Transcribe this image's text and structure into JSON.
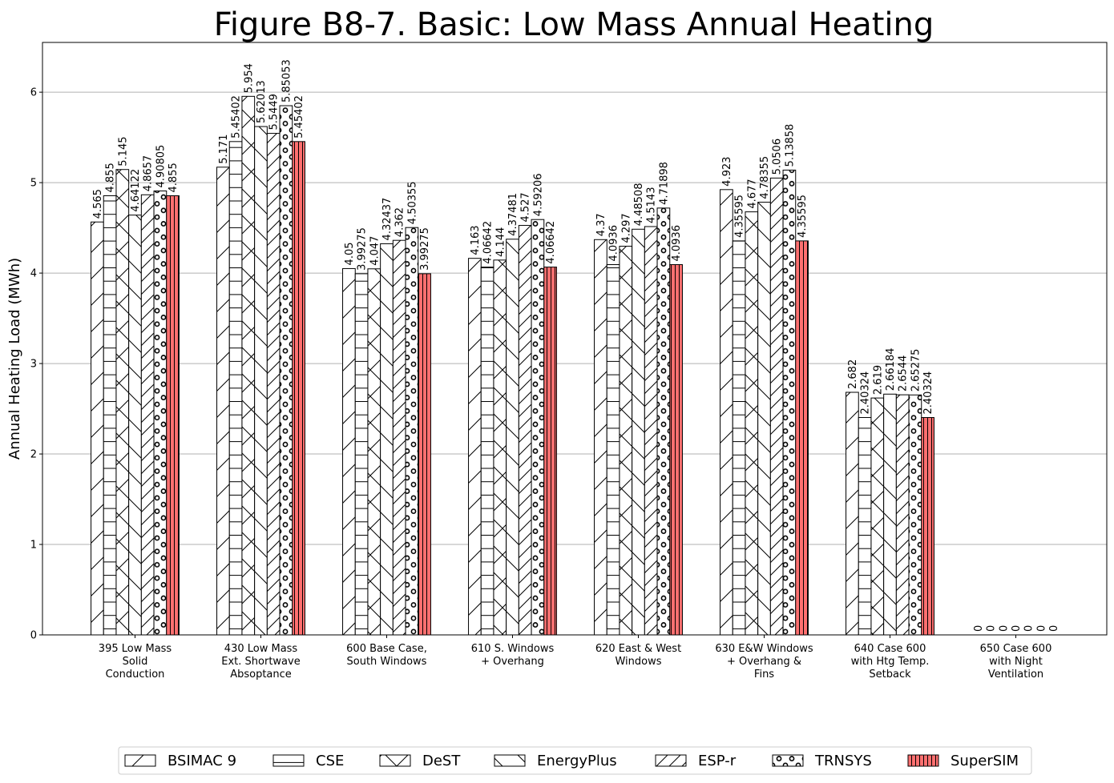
{
  "chart_data": {
    "type": "bar",
    "title": "Figure B8-7.  Basic: Low Mass Annual Heating",
    "ylabel": "Annual Heating Load (MWh)",
    "xlabel": "",
    "ylim": [
      0,
      6.55
    ],
    "yticks": [
      0,
      1,
      2,
      3,
      4,
      5,
      6
    ],
    "grid": "horizontal",
    "legend_position": "bottom",
    "categories": [
      "395 Low Mass\nSolid\nConduction",
      "430 Low Mass\nExt. Shortwave\nAbsoptance",
      "600 Base Case,\nSouth Windows",
      "610 S. Windows\n+ Overhang",
      "620 East & West\nWindows",
      "630 E&W Windows\n+ Overhang &\nFins",
      "640 Case 600\nwith Htg Temp.\nSetback",
      "650 Case 600\nwith Night\nVentilation"
    ],
    "series": [
      {
        "name": "BSIMAC 9",
        "pattern": "diag-forward",
        "color": "#ffffff",
        "values": [
          4.565,
          5.171,
          4.05,
          4.163,
          4.37,
          4.923,
          2.682,
          0
        ],
        "labels": [
          "4.565",
          "5.171",
          "4.05",
          "4.163",
          "4.37",
          "4.923",
          "2.682",
          "0"
        ]
      },
      {
        "name": "CSE",
        "pattern": "horizontal",
        "color": "#ffffff",
        "values": [
          4.855,
          5.45402,
          3.99275,
          4.06642,
          4.0936,
          4.35595,
          2.40324,
          0
        ],
        "labels": [
          "4.855",
          "5.45402",
          "3.99275",
          "4.06642",
          "4.0936",
          "4.35595",
          "2.40324",
          "0"
        ]
      },
      {
        "name": "DeST",
        "pattern": "cross",
        "color": "#ffffff",
        "values": [
          5.145,
          5.954,
          4.047,
          4.144,
          4.297,
          4.677,
          2.619,
          0
        ],
        "labels": [
          "5.145",
          "5.954",
          "4.047",
          "4.144",
          "4.297",
          "4.677",
          "2.619",
          "0"
        ]
      },
      {
        "name": "EnergyPlus",
        "pattern": "diag-back",
        "color": "#ffffff",
        "values": [
          4.64122,
          5.62013,
          4.32437,
          4.37481,
          4.48508,
          4.78355,
          2.66184,
          0
        ],
        "labels": [
          "4.64122",
          "5.62013",
          "4.32437",
          "4.37481",
          "4.48508",
          "4.78355",
          "2.66184",
          "0"
        ]
      },
      {
        "name": "ESP-r",
        "pattern": "diag-forward-dense",
        "color": "#ffffff",
        "values": [
          4.8657,
          5.5449,
          4.362,
          4.527,
          4.5143,
          5.0506,
          2.6544,
          0
        ],
        "labels": [
          "4.8657",
          "5.5449",
          "4.362",
          "4.527",
          "4.5143",
          "5.0506",
          "2.6544",
          "0"
        ]
      },
      {
        "name": "TRNSYS",
        "pattern": "circles",
        "color": "#ffffff",
        "values": [
          4.90805,
          5.85053,
          4.50355,
          4.59206,
          4.71898,
          5.13858,
          2.65275,
          0
        ],
        "labels": [
          "4.90805",
          "5.85053",
          "4.50355",
          "4.59206",
          "4.71898",
          "5.13858",
          "2.65275",
          "0"
        ]
      },
      {
        "name": "SuperSIM",
        "pattern": "vertical",
        "color": "#ff7070",
        "values": [
          4.855,
          5.45402,
          3.99275,
          4.06642,
          4.0936,
          4.35595,
          2.40324,
          0
        ],
        "labels": [
          "4.855",
          "5.45402",
          "3.99275",
          "4.06642",
          "4.0936",
          "4.35595",
          "2.40324",
          "0"
        ]
      }
    ]
  }
}
